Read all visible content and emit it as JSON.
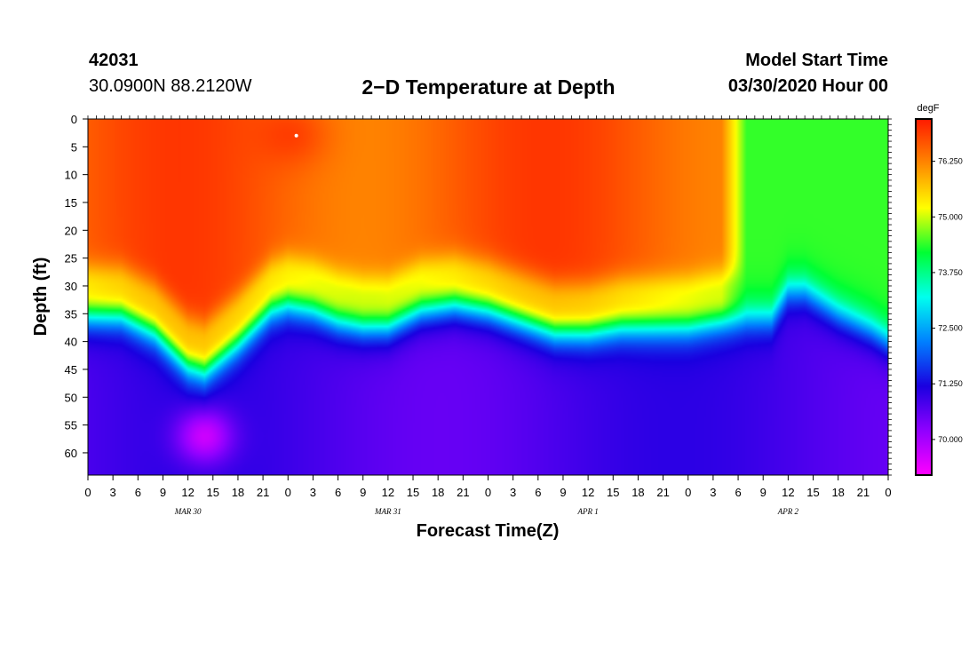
{
  "header": {
    "station_id": "42031",
    "coords": "30.0900N 88.2120W",
    "title": "2−D Temperature at Depth",
    "model_label": "Model Start Time",
    "model_time": "03/30/2020 Hour 00"
  },
  "chart_data": {
    "type": "heatmap",
    "title": "2-D Temperature at Depth",
    "xlabel": "Forecast Time(Z)",
    "ylabel": "Depth (ft)",
    "x_range_hours": [
      0,
      96
    ],
    "y_range_ft": [
      0,
      64
    ],
    "y_inverted": true,
    "x_tick_labels": [
      "0",
      "3",
      "6",
      "9",
      "12",
      "15",
      "18",
      "21",
      "0",
      "3",
      "6",
      "9",
      "12",
      "15",
      "18",
      "21",
      "0",
      "3",
      "6",
      "9",
      "12",
      "15",
      "18",
      "21",
      "0",
      "3",
      "6",
      "9",
      "12",
      "15",
      "18",
      "21",
      "0"
    ],
    "x_tick_hours": [
      0,
      3,
      6,
      9,
      12,
      15,
      18,
      21,
      24,
      27,
      30,
      33,
      36,
      39,
      42,
      45,
      48,
      51,
      54,
      57,
      60,
      63,
      66,
      69,
      72,
      75,
      78,
      81,
      84,
      87,
      90,
      93,
      96
    ],
    "date_labels": [
      {
        "label": "MAR 30",
        "hour": 12
      },
      {
        "label": "MAR 31",
        "hour": 36
      },
      {
        "label": "APR 1",
        "hour": 60
      },
      {
        "label": "APR 2",
        "hour": 84
      }
    ],
    "y_ticks": [
      0,
      5,
      10,
      15,
      20,
      25,
      30,
      35,
      40,
      45,
      50,
      55,
      60
    ],
    "y_tick_labels": [
      "0",
      "5",
      "10",
      "15",
      "20",
      "25",
      "30",
      "35",
      "40",
      "45",
      "50",
      "55",
      "60"
    ],
    "colorbar": {
      "unit": "degF",
      "range": [
        69.2,
        77.2
      ],
      "tick_values": [
        70.0,
        71.25,
        72.5,
        73.75,
        75.0,
        76.25
      ],
      "tick_labels": [
        "70.000",
        "71.250",
        "72.500",
        "73.750",
        "75.000",
        "76.250"
      ],
      "colors": [
        "#ff00ff",
        "#9000ff",
        "#1a00e0",
        "#0080ff",
        "#00ffee",
        "#00ff33",
        "#ffff00",
        "#ff8800",
        "#ff1a00"
      ]
    },
    "thermocline_depth_ft": {
      "hours": [
        0,
        4,
        8,
        12,
        14,
        18,
        22,
        24,
        27,
        30,
        33,
        36,
        40,
        44,
        48,
        52,
        56,
        60,
        64,
        68,
        72,
        76,
        80,
        82,
        84,
        86,
        90,
        94,
        96
      ],
      "values": [
        35,
        35,
        38,
        44,
        45,
        40,
        34,
        33,
        34,
        36,
        37,
        37,
        34,
        33,
        34,
        36,
        38,
        38,
        37,
        37,
        37,
        36,
        36,
        36,
        31,
        31,
        35,
        38,
        40
      ]
    },
    "surface_mixed_layer": {
      "cold_shift_hour": 76,
      "warm_core": {
        "hour": 25,
        "depth_ft": 3,
        "value": 77.0
      },
      "cold_core": {
        "hour": 14,
        "depth_ft": 57,
        "value": 69.4
      }
    }
  }
}
